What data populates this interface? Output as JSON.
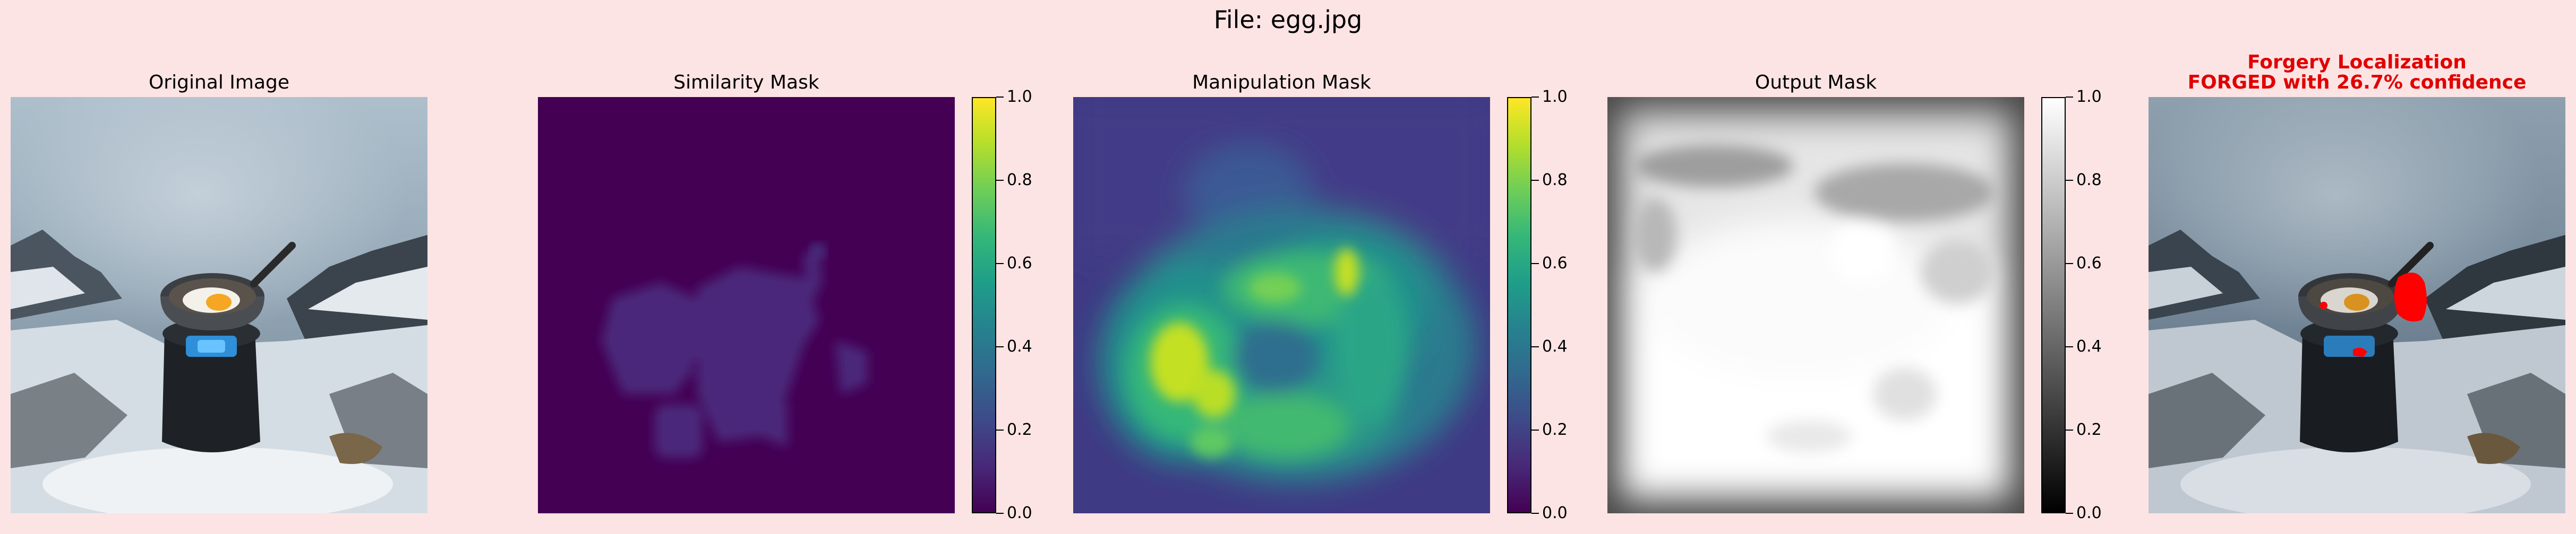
{
  "figure": {
    "title": "File: egg.jpg"
  },
  "panels": [
    {
      "id": "original",
      "title": "Original Image"
    },
    {
      "id": "similarity",
      "title": "Similarity Mask"
    },
    {
      "id": "manipulation",
      "title": "Manipulation Mask"
    },
    {
      "id": "output",
      "title": "Output Mask"
    },
    {
      "id": "localization",
      "title_line1": "Forgery Localization",
      "title_line2": "FORGED with 26.7% confidence"
    }
  ],
  "colorbars": {
    "ticks": [
      "0.0",
      "0.2",
      "0.4",
      "0.6",
      "0.8",
      "1.0"
    ],
    "ticks_numeric": [
      0.0,
      0.2,
      0.4,
      0.6,
      0.8,
      1.0
    ],
    "range": [
      0.0,
      1.0
    ]
  },
  "colors": {
    "background": "#fde4e4",
    "alert": "#e00000",
    "forgery_overlay": "#ff0000"
  }
}
